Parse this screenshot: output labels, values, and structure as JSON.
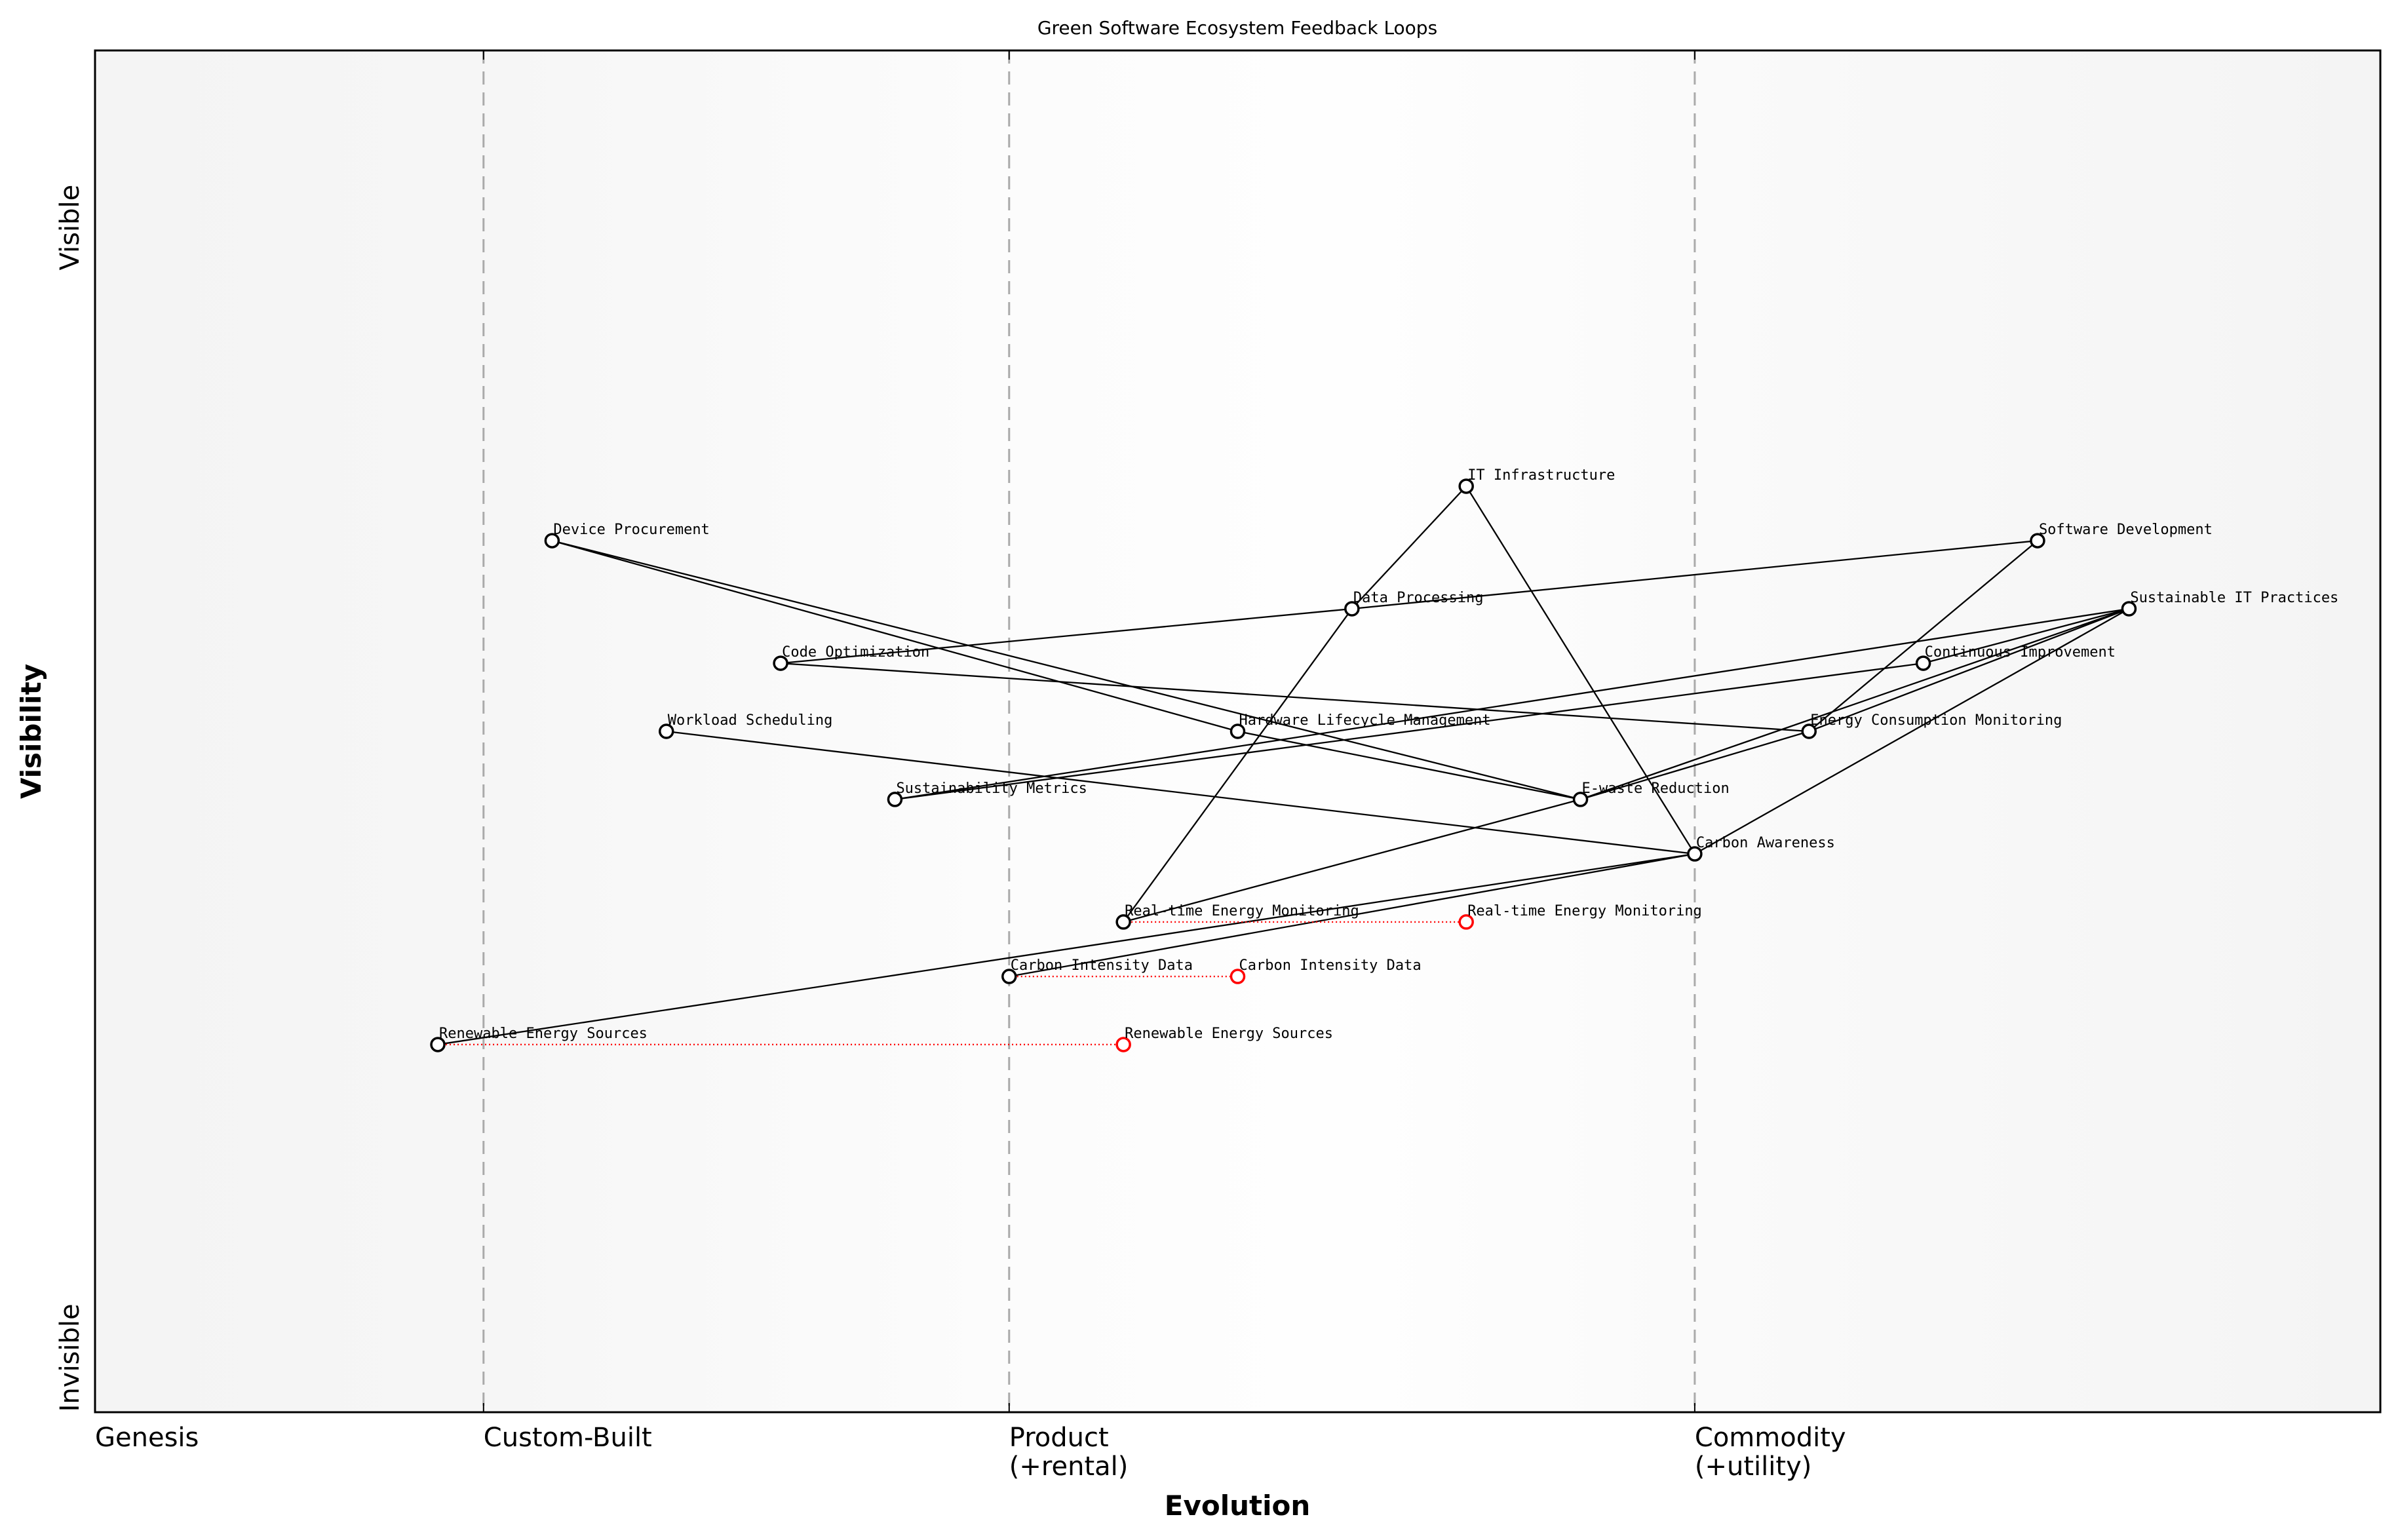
{
  "chart_data": {
    "type": "wardley-map",
    "title": "Green Software Ecosystem Feedback Loops",
    "xlabel": "Evolution",
    "ylabel": "Visibility",
    "xlim": [
      0,
      1
    ],
    "ylim": [
      0,
      1
    ],
    "y_ticks": [
      {
        "label": "Visible",
        "value": 0.87
      },
      {
        "label": "Invisible",
        "value": 0.04
      }
    ],
    "stages": [
      {
        "label": "Genesis",
        "value": 0.0,
        "divider": false
      },
      {
        "label": "Custom-Built",
        "value": 0.17,
        "divider": true
      },
      {
        "label": "Product\n(+rental)",
        "value": 0.4,
        "divider": true
      },
      {
        "label": "Commodity\n(+utility)",
        "value": 0.7,
        "divider": true
      }
    ],
    "colors": {
      "node": "#000000",
      "evolved": "#ff0000",
      "divider": "#aaaaaa",
      "background": "#f5f5f5"
    },
    "nodes": [
      {
        "name": "IT Infrastructure",
        "x": 0.6,
        "y": 0.68
      },
      {
        "name": "Device Procurement",
        "x": 0.2,
        "y": 0.64
      },
      {
        "name": "Software Development",
        "x": 0.85,
        "y": 0.64
      },
      {
        "name": "Data Processing",
        "x": 0.55,
        "y": 0.59
      },
      {
        "name": "Sustainable IT Practices",
        "x": 0.89,
        "y": 0.59
      },
      {
        "name": "Code Optimization",
        "x": 0.3,
        "y": 0.55
      },
      {
        "name": "Continuous Improvement",
        "x": 0.8,
        "y": 0.55
      },
      {
        "name": "Workload Scheduling",
        "x": 0.25,
        "y": 0.5
      },
      {
        "name": "Hardware Lifecycle Management",
        "x": 0.5,
        "y": 0.5
      },
      {
        "name": "Energy Consumption Monitoring",
        "x": 0.75,
        "y": 0.5
      },
      {
        "name": "Sustainability Metrics",
        "x": 0.35,
        "y": 0.45
      },
      {
        "name": "E-waste Reduction",
        "x": 0.65,
        "y": 0.45
      },
      {
        "name": "Carbon Awareness",
        "x": 0.7,
        "y": 0.41
      },
      {
        "name": "Real-time Energy Monitoring",
        "x": 0.45,
        "y": 0.36
      },
      {
        "name": "Carbon Intensity Data",
        "x": 0.4,
        "y": 0.32
      },
      {
        "name": "Renewable Energy Sources",
        "x": 0.15,
        "y": 0.27
      }
    ],
    "edges": [
      [
        "IT Infrastructure",
        "Data Processing"
      ],
      [
        "IT Infrastructure",
        "Carbon Awareness"
      ],
      [
        "Data Processing",
        "Real-time Energy Monitoring"
      ],
      [
        "Code Optimization",
        "Data Processing"
      ],
      [
        "Data Processing",
        "Software Development"
      ],
      [
        "Device Procurement",
        "Hardware Lifecycle Management"
      ],
      [
        "Device Procurement",
        "E-waste Reduction"
      ],
      [
        "Hardware Lifecycle Management",
        "E-waste Reduction"
      ],
      [
        "Code Optimization",
        "Energy Consumption Monitoring"
      ],
      [
        "Workload Scheduling",
        "Carbon Awareness"
      ],
      [
        "Sustainability Metrics",
        "Continuous Improvement"
      ],
      [
        "Sustainability Metrics",
        "Sustainable IT Practices"
      ],
      [
        "Continuous Improvement",
        "Sustainable IT Practices"
      ],
      [
        "Real-time Energy Monitoring",
        "E-waste Reduction"
      ],
      [
        "E-waste Reduction",
        "Sustainable IT Practices"
      ],
      [
        "E-waste Reduction",
        "Energy Consumption Monitoring"
      ],
      [
        "Energy Consumption Monitoring",
        "Software Development"
      ],
      [
        "Energy Consumption Monitoring",
        "Sustainable IT Practices"
      ],
      [
        "Carbon Awareness",
        "Sustainable IT Practices"
      ],
      [
        "Renewable Energy Sources",
        "Carbon Awareness"
      ],
      [
        "Carbon Intensity Data",
        "Carbon Awareness"
      ]
    ],
    "evolutions": [
      {
        "name": "Real-time Energy Monitoring",
        "from_x": 0.45,
        "to_x": 0.6,
        "y": 0.36
      },
      {
        "name": "Carbon Intensity Data",
        "from_x": 0.4,
        "to_x": 0.5,
        "y": 0.32
      },
      {
        "name": "Renewable Energy Sources",
        "from_x": 0.15,
        "to_x": 0.45,
        "y": 0.27
      }
    ]
  }
}
